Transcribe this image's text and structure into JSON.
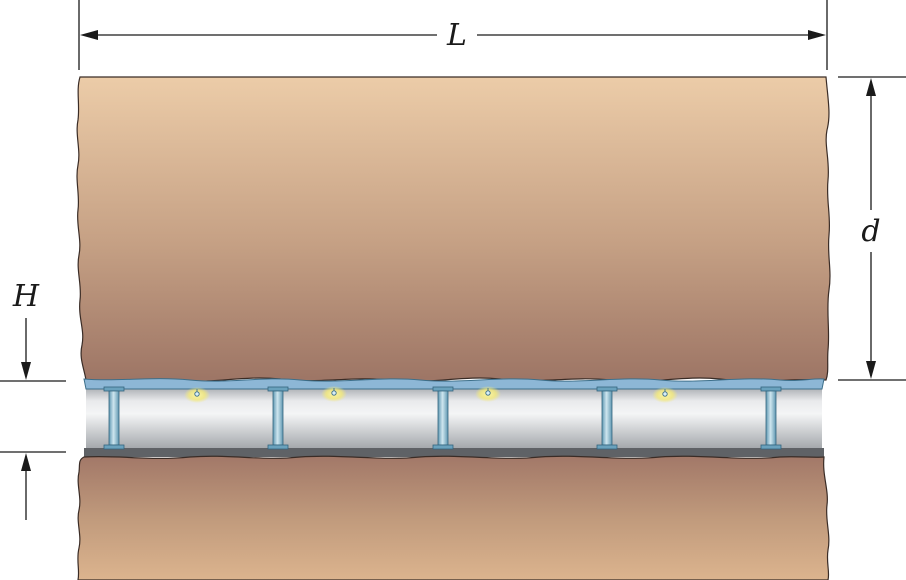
{
  "labels": {
    "length": "L",
    "depth": "d",
    "height": "H"
  },
  "colors": {
    "rock_top": "#eccaa5",
    "rock_bottom": "#a0786a",
    "floor_top": "#a27868",
    "floor_bottom": "#d8b08c",
    "roof_plate": "#8db7d6",
    "column": "#7fb3c9",
    "cavity_light": "#f2f3f4",
    "cavity_dark": "#a9acb0",
    "lamp_glow": "#f4ea7a"
  },
  "icons": {
    "lamp": "light-fixture-icon"
  }
}
